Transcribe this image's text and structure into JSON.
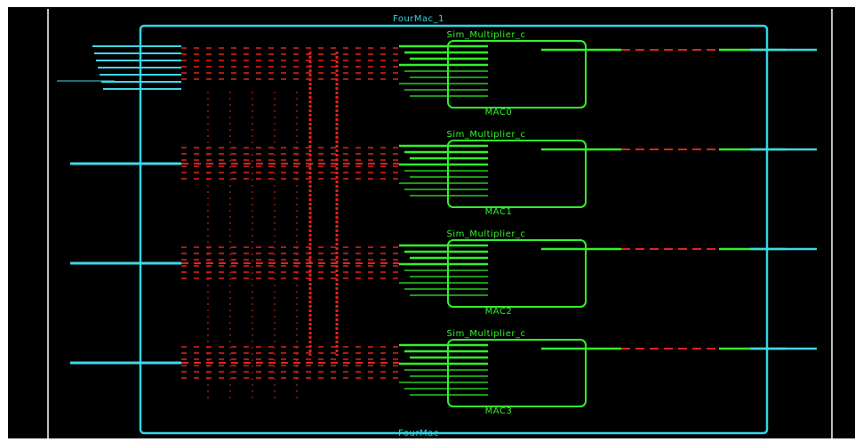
{
  "schematic": {
    "top_label": "FourMac_1",
    "bottom_label": "FourMac",
    "module_header": "Sim_Multiplier_c",
    "modules": [
      {
        "name": "MAC0"
      },
      {
        "name": "MAC1"
      },
      {
        "name": "MAC2"
      },
      {
        "name": "MAC3"
      }
    ]
  },
  "colors": {
    "background": "#000000",
    "boundary": "#2fd6e6",
    "module": "#31f22a",
    "net": "#e0241e",
    "port": "#3fd8e8",
    "frame": "#b9b9b9"
  }
}
